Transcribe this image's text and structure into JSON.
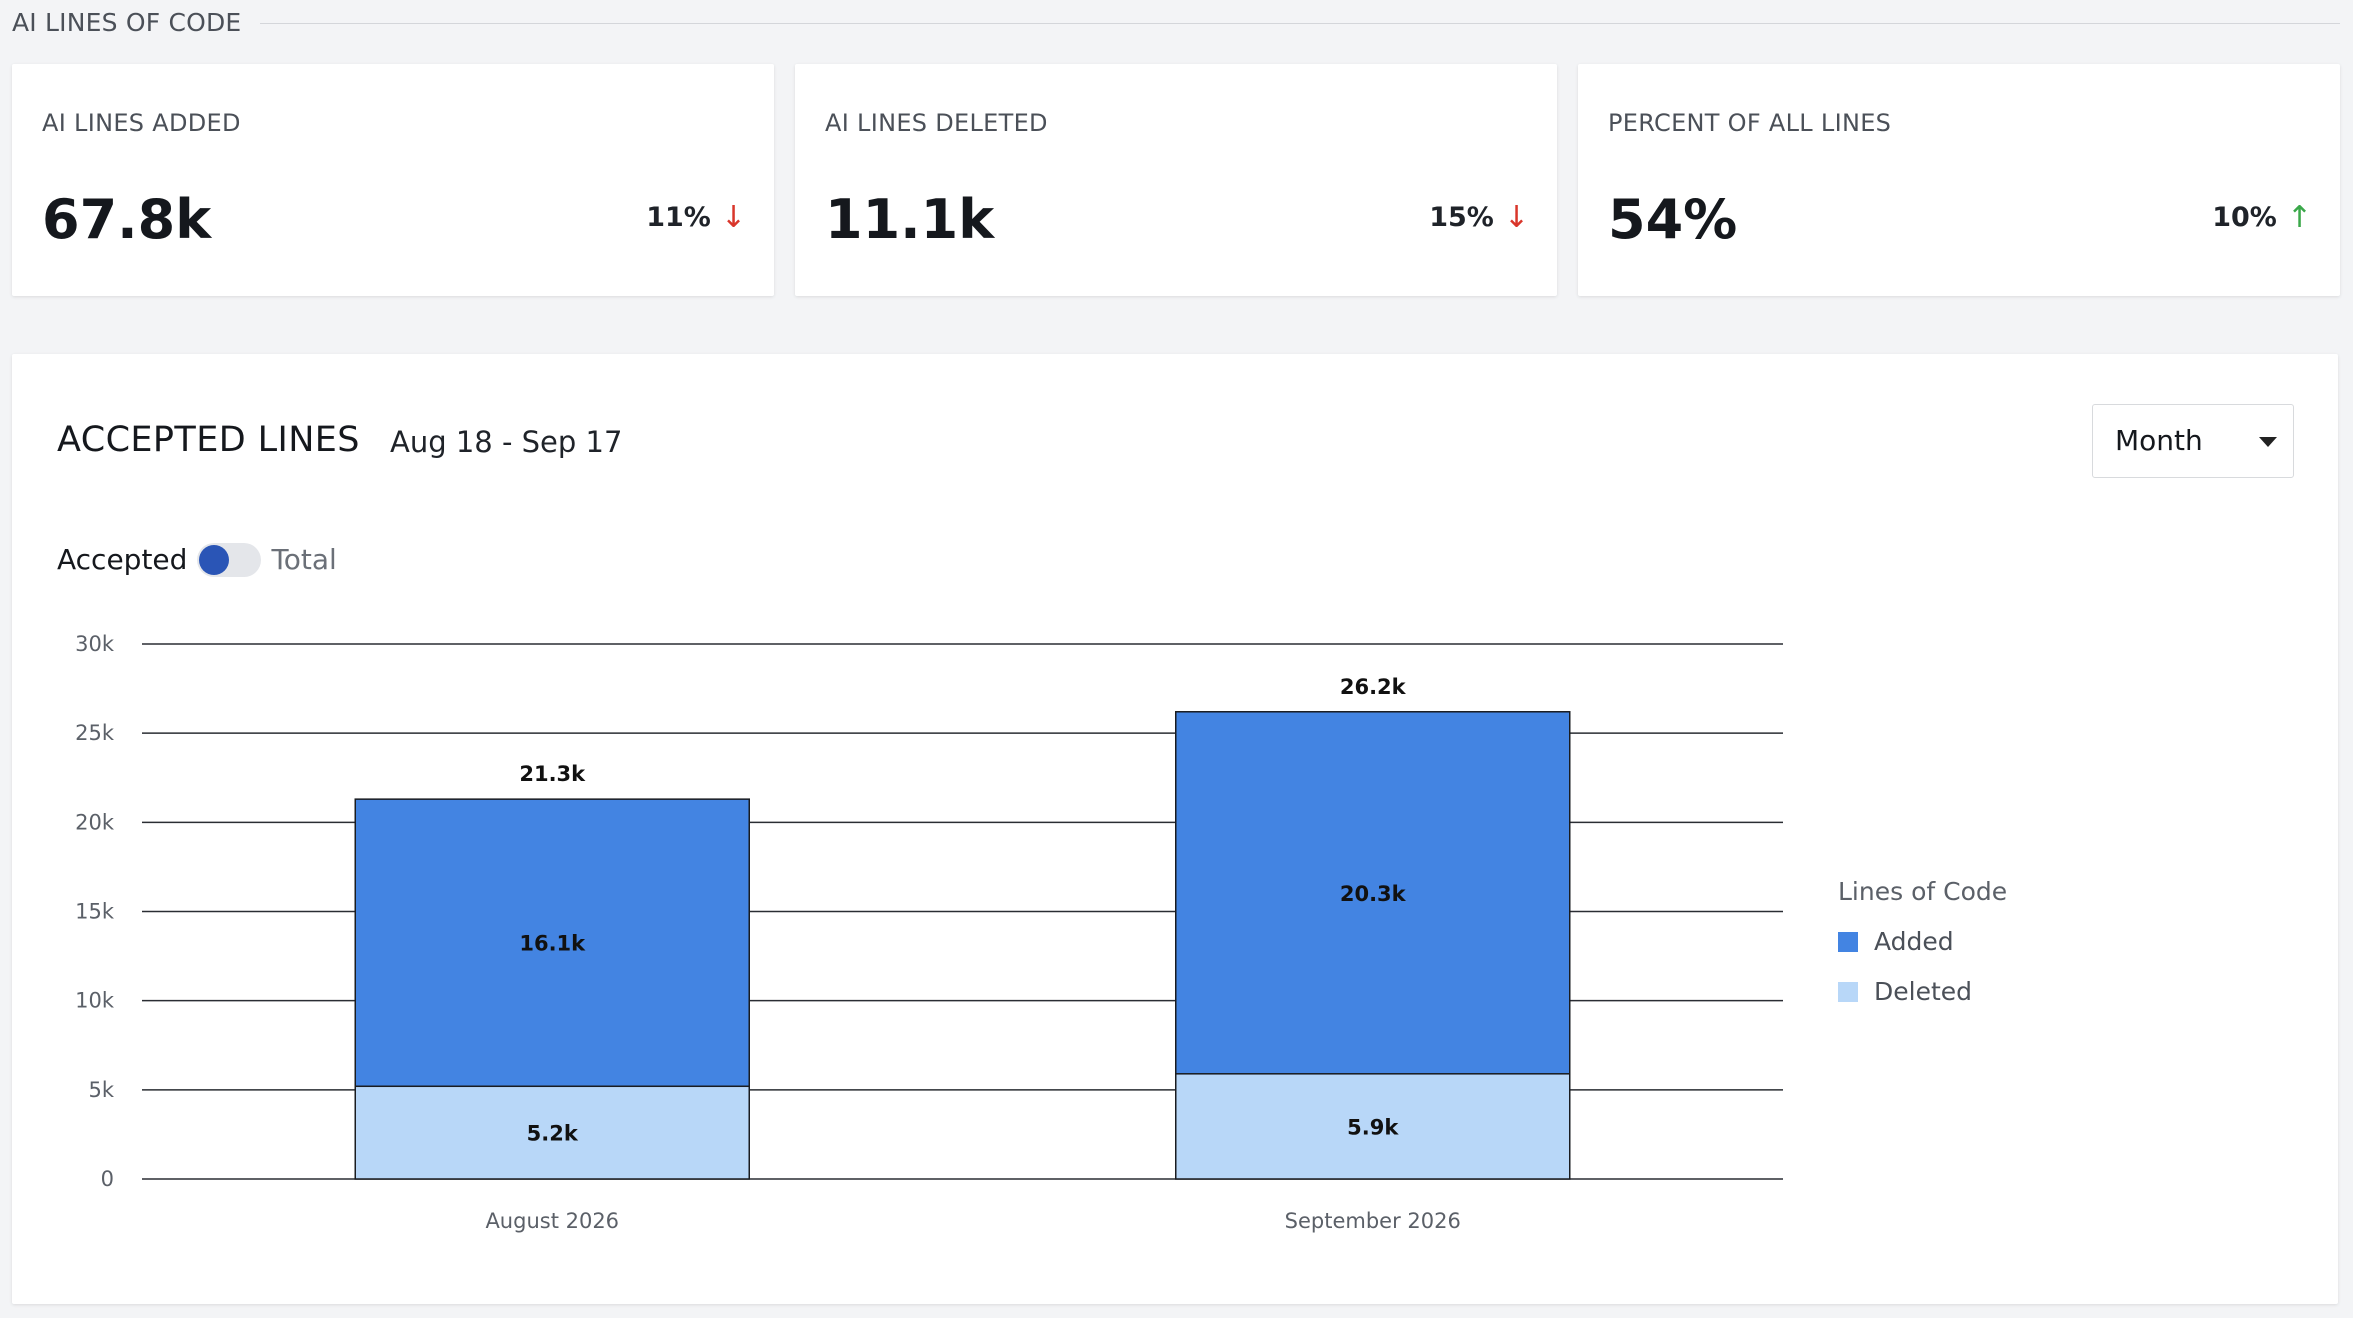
{
  "section": {
    "title": "AI LINES OF CODE"
  },
  "stats": [
    {
      "label": "AI LINES ADDED",
      "value": "67.8k",
      "change": "11%",
      "direction": "down",
      "arrow": "↓"
    },
    {
      "label": "AI LINES DELETED",
      "value": "11.1k",
      "change": "15%",
      "direction": "down",
      "arrow": "↓"
    },
    {
      "label": "PERCENT OF ALL LINES",
      "value": "54%",
      "change": "10%",
      "direction": "up",
      "arrow": "↑"
    }
  ],
  "panel": {
    "title": "ACCEPTED LINES",
    "range": "Aug 18 - Sep 17",
    "period_select": "Month",
    "toggle": {
      "left": "Accepted",
      "right": "Total",
      "state": "Accepted"
    }
  },
  "legend": {
    "title": "Lines of Code",
    "items": [
      {
        "label": "Added",
        "color": "#4384e2"
      },
      {
        "label": "Deleted",
        "color": "#b8d7f8"
      }
    ]
  },
  "colors": {
    "added": "#4384e2",
    "deleted": "#b8d7f8",
    "down": "#d9362b",
    "up": "#3aa84a",
    "toggle_knob": "#2a55b6"
  },
  "chart_data": {
    "type": "bar",
    "stacked": true,
    "categories": [
      "August 2026",
      "September 2026"
    ],
    "series": [
      {
        "name": "Deleted",
        "values": [
          5200,
          5900
        ],
        "labels": [
          "5.2k",
          "5.9k"
        ]
      },
      {
        "name": "Added",
        "values": [
          16100,
          20300
        ],
        "labels": [
          "16.1k",
          "20.3k"
        ]
      }
    ],
    "totals": [
      21300,
      26200
    ],
    "total_labels": [
      "21.3k",
      "26.2k"
    ],
    "ylim": [
      0,
      30000
    ],
    "yticks": [
      0,
      5000,
      10000,
      15000,
      20000,
      25000,
      30000
    ],
    "ytick_labels": [
      "0",
      "5k",
      "10k",
      "15k",
      "20k",
      "25k",
      "30k"
    ],
    "grid": true,
    "legend_position": "right"
  }
}
